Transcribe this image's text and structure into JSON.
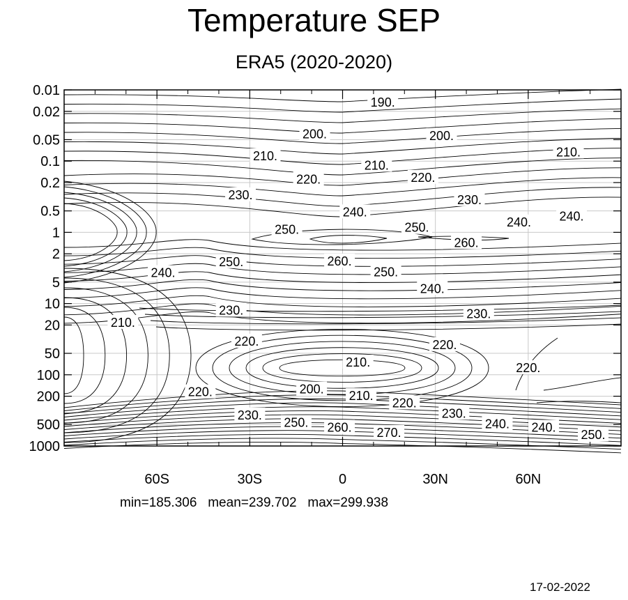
{
  "chart_data": {
    "type": "contour",
    "title": "Temperature SEP",
    "subtitle": "ERA5 (2020-2020)",
    "x_axis": {
      "scale": "linear",
      "range": [
        -90,
        90
      ],
      "ticks": [
        {
          "value": -60,
          "label": "60S"
        },
        {
          "value": -30,
          "label": "30S"
        },
        {
          "value": 0,
          "label": "0"
        },
        {
          "value": 30,
          "label": "30N"
        },
        {
          "value": 60,
          "label": "60N"
        }
      ]
    },
    "y_axis": {
      "scale": "log",
      "inverted": true,
      "range": [
        0.01,
        1000
      ],
      "ticks": [
        {
          "value": 0.01,
          "label": "0.01"
        },
        {
          "value": 0.02,
          "label": "0.02"
        },
        {
          "value": 0.05,
          "label": "0.05"
        },
        {
          "value": 0.1,
          "label": "0.1"
        },
        {
          "value": 0.2,
          "label": "0.2"
        },
        {
          "value": 0.5,
          "label": "0.5"
        },
        {
          "value": 1,
          "label": "1"
        },
        {
          "value": 2,
          "label": "2"
        },
        {
          "value": 5,
          "label": "5"
        },
        {
          "value": 10,
          "label": "10"
        },
        {
          "value": 20,
          "label": "20"
        },
        {
          "value": 50,
          "label": "50"
        },
        {
          "value": 100,
          "label": "100"
        },
        {
          "value": 200,
          "label": "200"
        },
        {
          "value": 500,
          "label": "500"
        },
        {
          "value": 1000,
          "label": "1000"
        }
      ]
    },
    "grid": true,
    "contour_labels": [
      {
        "text": "190.",
        "lat": 13,
        "p": 0.015
      },
      {
        "text": "200.",
        "lat": -9,
        "p": 0.042
      },
      {
        "text": "200.",
        "lat": 32,
        "p": 0.044
      },
      {
        "text": "210.",
        "lat": -25,
        "p": 0.085
      },
      {
        "text": "210.",
        "lat": 11,
        "p": 0.115
      },
      {
        "text": "210.",
        "lat": 73,
        "p": 0.075
      },
      {
        "text": "220.",
        "lat": -11,
        "p": 0.18
      },
      {
        "text": "220.",
        "lat": 26,
        "p": 0.17
      },
      {
        "text": "230.",
        "lat": -33,
        "p": 0.3
      },
      {
        "text": "230.",
        "lat": 41,
        "p": 0.35
      },
      {
        "text": "240.",
        "lat": 4,
        "p": 0.52
      },
      {
        "text": "240.",
        "lat": 57,
        "p": 0.72
      },
      {
        "text": "240.",
        "lat": 74,
        "p": 0.6
      },
      {
        "text": "250.",
        "lat": -18,
        "p": 0.92
      },
      {
        "text": "250.",
        "lat": 24,
        "p": 0.86
      },
      {
        "text": "260.",
        "lat": 40,
        "p": 1.4
      },
      {
        "text": "250.",
        "lat": -36,
        "p": 2.6
      },
      {
        "text": "260.",
        "lat": -1,
        "p": 2.55
      },
      {
        "text": "250.",
        "lat": 14,
        "p": 3.6
      },
      {
        "text": "240.",
        "lat": -58,
        "p": 3.7
      },
      {
        "text": "240.",
        "lat": 29,
        "p": 6.2
      },
      {
        "text": "230.",
        "lat": -36,
        "p": 12.5
      },
      {
        "text": "230.",
        "lat": 44,
        "p": 14.0
      },
      {
        "text": "210.",
        "lat": -71,
        "p": 18.5
      },
      {
        "text": "220.",
        "lat": -31,
        "p": 34.0
      },
      {
        "text": "220.",
        "lat": 33,
        "p": 38.0
      },
      {
        "text": "210.",
        "lat": 5,
        "p": 67.0
      },
      {
        "text": "220.",
        "lat": 60,
        "p": 80.0
      },
      {
        "text": "200.",
        "lat": -10,
        "p": 160.0
      },
      {
        "text": "210.",
        "lat": 6,
        "p": 198.0
      },
      {
        "text": "220.",
        "lat": 20,
        "p": 250.0
      },
      {
        "text": "220.",
        "lat": -46,
        "p": 175.0
      },
      {
        "text": "230.",
        "lat": -30,
        "p": 370.0
      },
      {
        "text": "230.",
        "lat": 36,
        "p": 350.0
      },
      {
        "text": "250.",
        "lat": -15,
        "p": 470.0
      },
      {
        "text": "260.",
        "lat": -1,
        "p": 550.0
      },
      {
        "text": "270.",
        "lat": 15,
        "p": 650.0
      },
      {
        "text": "240.",
        "lat": 50,
        "p": 490.0
      },
      {
        "text": "240.",
        "lat": 65,
        "p": 550.0
      },
      {
        "text": "250.",
        "lat": 81,
        "p": 700.0
      }
    ]
  },
  "footer": {
    "stats": "min=185.306   mean=239.702   max=299.938",
    "date": "17-02-2022"
  }
}
